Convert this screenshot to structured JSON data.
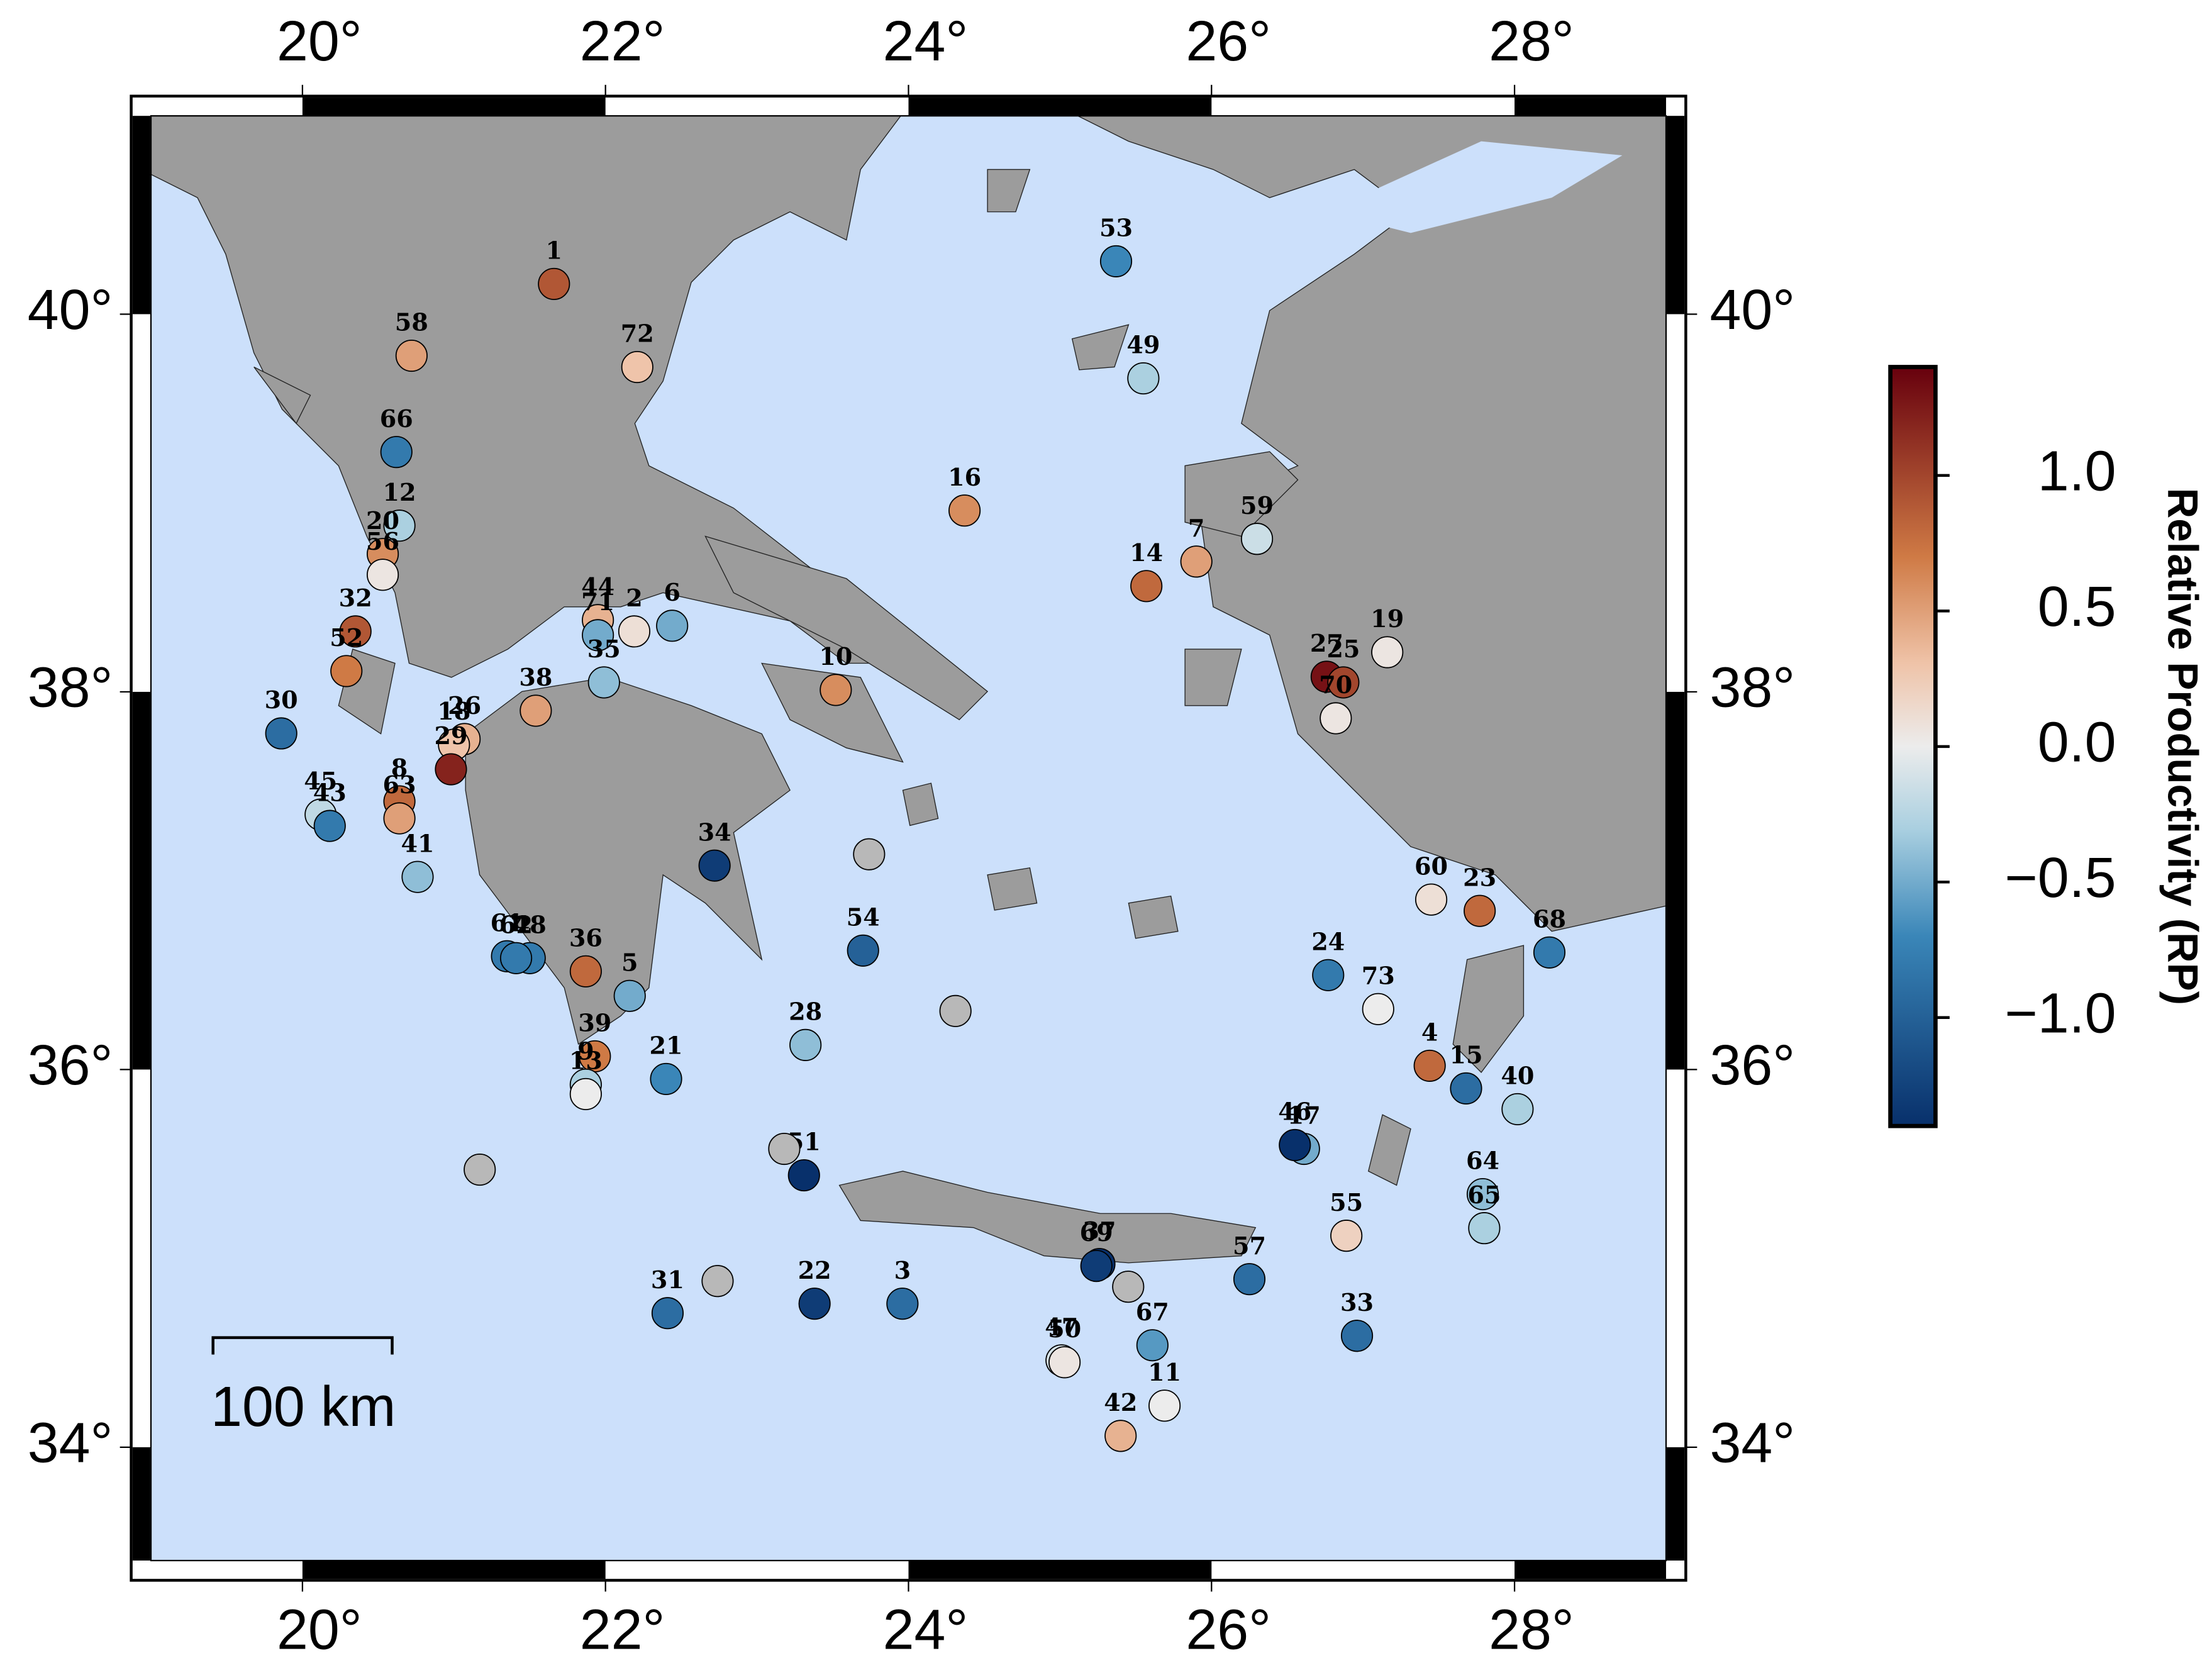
{
  "chart_data": {
    "type": "scatter",
    "xlim": [
      19,
      29
    ],
    "ylim": [
      33.4,
      41.05
    ],
    "xticks": [
      {
        "value": 20,
        "label": "20°"
      },
      {
        "value": 22,
        "label": "22°"
      },
      {
        "value": 24,
        "label": "24°"
      },
      {
        "value": 26,
        "label": "26°"
      },
      {
        "value": 28,
        "label": "28°"
      }
    ],
    "yticks": [
      {
        "value": 34,
        "label": "34°"
      },
      {
        "value": 36,
        "label": "36°"
      },
      {
        "value": 38,
        "label": "38°"
      },
      {
        "value": 40,
        "label": "40°"
      }
    ],
    "labels": [
      "1",
      "58",
      "72",
      "66",
      "12",
      "20",
      "56",
      "32",
      "52",
      "30",
      "44",
      "2",
      "6",
      "71",
      "35",
      "38",
      "26",
      "18",
      "8",
      "29",
      "63",
      "45",
      "43",
      "41",
      "10",
      "16",
      "53",
      "49",
      "7",
      "14",
      "59",
      "19",
      "27",
      "25",
      "70",
      "34",
      "54",
      "28",
      "48",
      "61",
      "62",
      "36",
      "5",
      "39",
      "9",
      "13",
      "21",
      "51",
      "22",
      "3",
      "31",
      "37",
      "69",
      "67",
      "47",
      "50",
      "42",
      "11",
      "57",
      "17",
      "46",
      "55",
      "33",
      "60",
      "23",
      "68",
      "24",
      "73",
      "4",
      "15",
      "40",
      "64",
      "65",
      null,
      null,
      null,
      null,
      null,
      null
    ],
    "x": [
      21.66,
      20.72,
      22.21,
      20.62,
      20.64,
      20.53,
      20.53,
      20.35,
      20.29,
      19.86,
      21.95,
      22.19,
      22.44,
      21.95,
      21.99,
      21.54,
      21.07,
      21.0,
      20.64,
      20.98,
      20.64,
      20.12,
      20.18,
      20.76,
      23.52,
      24.37,
      25.37,
      25.55,
      25.9,
      25.57,
      26.3,
      27.16,
      26.76,
      26.87,
      26.82,
      22.72,
      23.7,
      23.32,
      21.5,
      21.35,
      21.41,
      21.87,
      22.16,
      21.93,
      21.87,
      21.87,
      22.4,
      23.31,
      23.38,
      23.96,
      22.41,
      25.26,
      25.24,
      25.61,
      25.01,
      25.03,
      25.4,
      25.69,
      26.25,
      26.61,
      26.55,
      26.89,
      26.96,
      27.45,
      27.77,
      28.23,
      26.77,
      27.1,
      27.44,
      27.68,
      28.02,
      27.79,
      27.8,
      23.74,
      24.31,
      21.17,
      22.74,
      23.18,
      25.45
    ],
    "y": [
      40.16,
      39.78,
      39.72,
      39.27,
      38.88,
      38.73,
      38.62,
      38.32,
      38.11,
      37.78,
      38.38,
      38.32,
      38.35,
      38.3,
      38.05,
      37.9,
      37.75,
      37.72,
      37.42,
      37.59,
      37.33,
      37.35,
      37.29,
      37.02,
      38.01,
      38.96,
      40.28,
      39.66,
      38.69,
      38.56,
      38.81,
      38.21,
      38.08,
      38.05,
      37.86,
      37.08,
      36.63,
      36.13,
      36.59,
      36.6,
      36.59,
      36.52,
      36.39,
      36.07,
      35.92,
      35.87,
      35.95,
      35.44,
      34.76,
      34.76,
      34.71,
      34.97,
      34.96,
      34.54,
      34.46,
      34.45,
      34.06,
      34.22,
      34.89,
      35.58,
      35.6,
      35.12,
      34.59,
      36.9,
      36.84,
      36.62,
      36.5,
      36.32,
      36.02,
      35.9,
      35.79,
      35.34,
      35.16,
      37.14,
      36.31,
      35.47,
      34.88,
      35.58,
      34.85
    ],
    "values": [
      0.9,
      0.5,
      0.3,
      -0.8,
      -0.3,
      0.6,
      0.05,
      0.9,
      0.7,
      -0.9,
      0.4,
      0.1,
      -0.5,
      -0.5,
      -0.4,
      0.5,
      0.4,
      0.3,
      0.8,
      1.2,
      0.5,
      -0.2,
      -0.8,
      -0.4,
      0.6,
      0.6,
      -0.7,
      -0.3,
      0.5,
      0.8,
      -0.15,
      0.05,
      1.3,
      1.0,
      0.05,
      -1.3,
      -1.0,
      -0.4,
      -0.8,
      -0.8,
      -0.8,
      0.8,
      -0.5,
      0.7,
      -0.3,
      0.0,
      -0.7,
      -1.4,
      -1.3,
      -0.9,
      -0.9,
      -1.4,
      -1.3,
      -0.6,
      -0.1,
      0.05,
      0.4,
      0.0,
      -0.9,
      -0.5,
      -1.4,
      0.2,
      -0.9,
      0.1,
      0.8,
      -0.8,
      -0.8,
      0.0,
      0.8,
      -0.9,
      -0.3,
      -0.4,
      -0.3,
      null,
      null,
      null,
      null,
      null,
      null
    ],
    "color_label": "Relative Productivity (RP)",
    "clim": [
      -1.4,
      1.4
    ],
    "cticks": [
      {
        "value": 1.0,
        "label": "1.0"
      },
      {
        "value": 0.5,
        "label": "0.5"
      },
      {
        "value": 0.0,
        "label": "0.0"
      },
      {
        "value": -0.5,
        "label": "−0.5"
      },
      {
        "value": -1.0,
        "label": "−1.0"
      }
    ],
    "scale_bar": "100 km"
  }
}
